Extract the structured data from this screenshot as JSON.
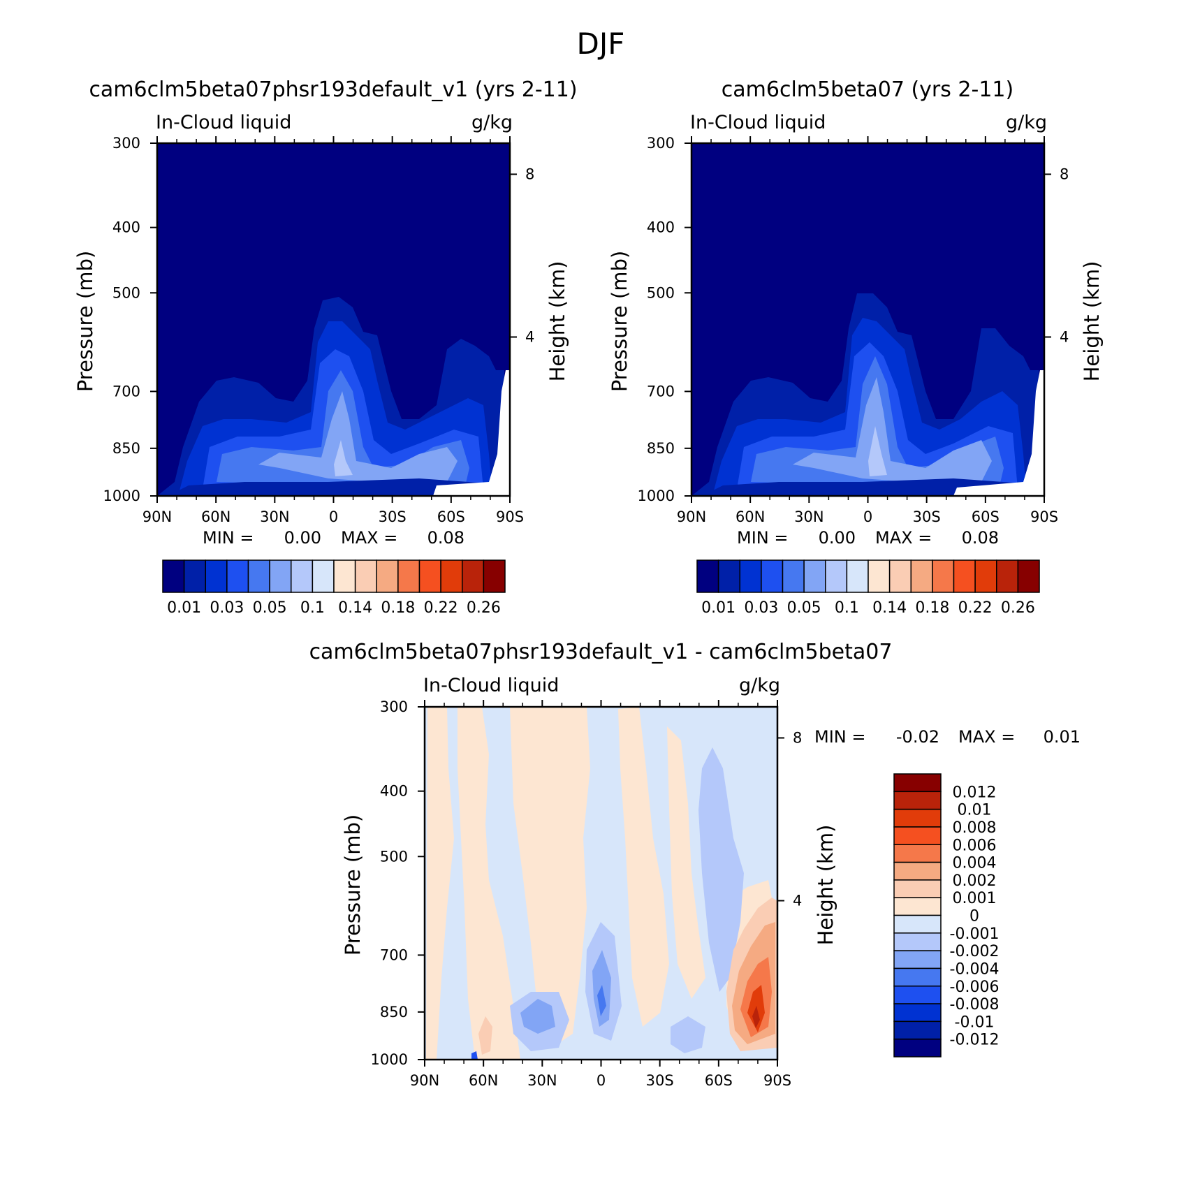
{
  "figure": {
    "title": "DJF"
  },
  "palette": {
    "sequential": [
      "#000080",
      "#0020a8",
      "#0032d2",
      "#1e50f0",
      "#4678f0",
      "#82a5f5",
      "#b4c8fa",
      "#d7e6fa",
      "#fde6d2",
      "#facdb4",
      "#f5aa82",
      "#f5784a",
      "#f55020",
      "#e13c0a",
      "#b9230a",
      "#870000"
    ],
    "diverging": [
      "#000080",
      "#0020a8",
      "#0032d2",
      "#1e50f0",
      "#4678f0",
      "#82a5f5",
      "#b4c8fa",
      "#d7e6fa",
      "#fde6d2",
      "#facdb4",
      "#f5aa82",
      "#f5784a",
      "#f55020",
      "#e13c0a",
      "#b9230a",
      "#870000"
    ]
  },
  "chart_data": [
    {
      "type": "heatmap",
      "panel": "top-left",
      "title": "cam6clm5beta07phsr193default_v1 (yrs 2-11)",
      "left_label": "In-Cloud liquid",
      "right_label": "g/kg",
      "xlabel": "",
      "ylabel": "Pressure (mb)",
      "y2label": "Height (km)",
      "x_ticks": [
        "90N",
        "60N",
        "30N",
        "0",
        "30S",
        "60S",
        "90S"
      ],
      "y_ticks": [
        300,
        400,
        500,
        700,
        850,
        1000
      ],
      "y2_ticks": [
        8,
        4
      ],
      "ylim": [
        1000,
        300
      ],
      "y_scale": "log",
      "stats": {
        "min_label": "MIN =",
        "min": "0.00",
        "max_label": "MAX =",
        "max": "0.08"
      },
      "colorbar": {
        "orientation": "horizontal",
        "labels": [
          "0.01",
          "0.03",
          "0.05",
          "0.1",
          "0.14",
          "0.18",
          "0.22",
          "0.26"
        ]
      }
    },
    {
      "type": "heatmap",
      "panel": "top-right",
      "title": "cam6clm5beta07 (yrs 2-11)",
      "left_label": "In-Cloud liquid",
      "right_label": "g/kg",
      "xlabel": "",
      "ylabel": "Pressure (mb)",
      "y2label": "Height (km)",
      "x_ticks": [
        "90N",
        "60N",
        "30N",
        "0",
        "30S",
        "60S",
        "90S"
      ],
      "y_ticks": [
        300,
        400,
        500,
        700,
        850,
        1000
      ],
      "y2_ticks": [
        8,
        4
      ],
      "ylim": [
        1000,
        300
      ],
      "y_scale": "log",
      "stats": {
        "min_label": "MIN =",
        "min": "0.00",
        "max_label": "MAX =",
        "max": "0.08"
      },
      "colorbar": {
        "orientation": "horizontal",
        "labels": [
          "0.01",
          "0.03",
          "0.05",
          "0.1",
          "0.14",
          "0.18",
          "0.22",
          "0.26"
        ]
      }
    },
    {
      "type": "heatmap",
      "panel": "bottom",
      "title": "cam6clm5beta07phsr193default_v1 - cam6clm5beta07",
      "left_label": "In-Cloud liquid",
      "right_label": "g/kg",
      "xlabel": "",
      "ylabel": "Pressure (mb)",
      "y2label": "Height (km)",
      "x_ticks": [
        "90N",
        "60N",
        "30N",
        "0",
        "30S",
        "60S",
        "90S"
      ],
      "y_ticks": [
        300,
        400,
        500,
        700,
        850,
        1000
      ],
      "y2_ticks": [
        8,
        4
      ],
      "ylim": [
        1000,
        300
      ],
      "y_scale": "log",
      "stats": {
        "min_label": "MIN =",
        "min": "-0.02",
        "max_label": "MAX =",
        "max": "0.01"
      },
      "colorbar": {
        "orientation": "vertical",
        "labels": [
          "0.012",
          "0.01",
          "0.008",
          "0.006",
          "0.004",
          "0.002",
          "0.001",
          "0",
          "-0.001",
          "-0.002",
          "-0.004",
          "-0.006",
          "-0.008",
          "-0.01",
          "-0.012"
        ]
      }
    }
  ]
}
